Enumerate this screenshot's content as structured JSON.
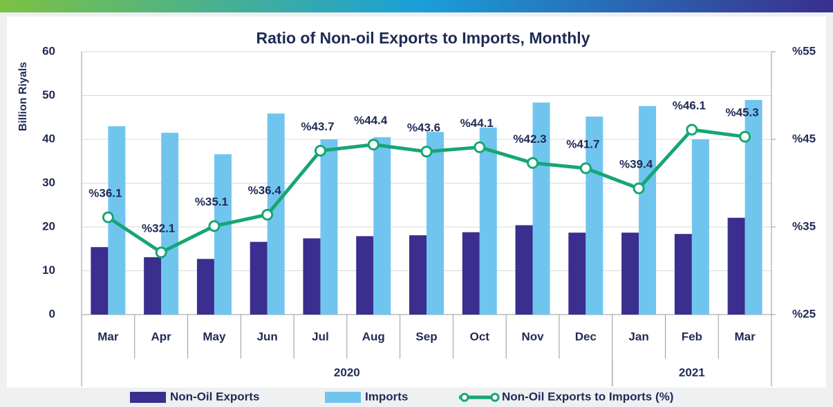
{
  "chart_data": {
    "type": "bar_line",
    "title": "Ratio of Non-oil Exports to Imports, Monthly",
    "ylabel": "Billion Riyals",
    "categories": [
      "Mar",
      "Apr",
      "May",
      "Jun",
      "Jul",
      "Aug",
      "Sep",
      "Oct",
      "Nov",
      "Dec",
      "Jan",
      "Feb",
      "Mar"
    ],
    "group_labels": [
      "2020",
      "2021"
    ],
    "ylim": [
      0,
      60
    ],
    "yticks": [
      0,
      10,
      20,
      30,
      40,
      50,
      60
    ],
    "y2lim": [
      25,
      55
    ],
    "y2ticks": [
      {
        "value": 25,
        "label": "%25"
      },
      {
        "value": 35,
        "label": "%35"
      },
      {
        "value": 45,
        "label": "%45"
      },
      {
        "value": 55,
        "label": "%55"
      }
    ],
    "series": [
      {
        "name": "Non-Oil Exports",
        "type": "bar",
        "color": "#3a2e8e",
        "values": [
          15.4,
          13.1,
          12.7,
          16.6,
          17.4,
          17.9,
          18.1,
          18.8,
          20.4,
          18.7,
          18.7,
          18.4,
          22.1
        ]
      },
      {
        "name": "Imports",
        "type": "bar",
        "color": "#70c5ef",
        "values": [
          43.0,
          41.5,
          36.6,
          45.9,
          40.0,
          40.5,
          41.7,
          42.7,
          48.4,
          45.2,
          47.6,
          40.0,
          49.0
        ]
      },
      {
        "name": "Non-Oil Exports to Imports (%)",
        "type": "line",
        "axis": "y2",
        "color": "#16a673",
        "values": [
          36.1,
          32.1,
          35.1,
          36.4,
          43.7,
          44.4,
          43.6,
          44.1,
          42.3,
          41.7,
          39.4,
          46.1,
          45.3
        ],
        "value_labels": [
          "%36.1",
          "%32.1",
          "%35.1",
          "%36.4",
          "%43.7",
          "%44.4",
          "%43.6",
          "%44.1",
          "%42.3",
          "%41.7",
          "%39.4",
          "%46.1",
          "%45.3"
        ]
      }
    ]
  }
}
